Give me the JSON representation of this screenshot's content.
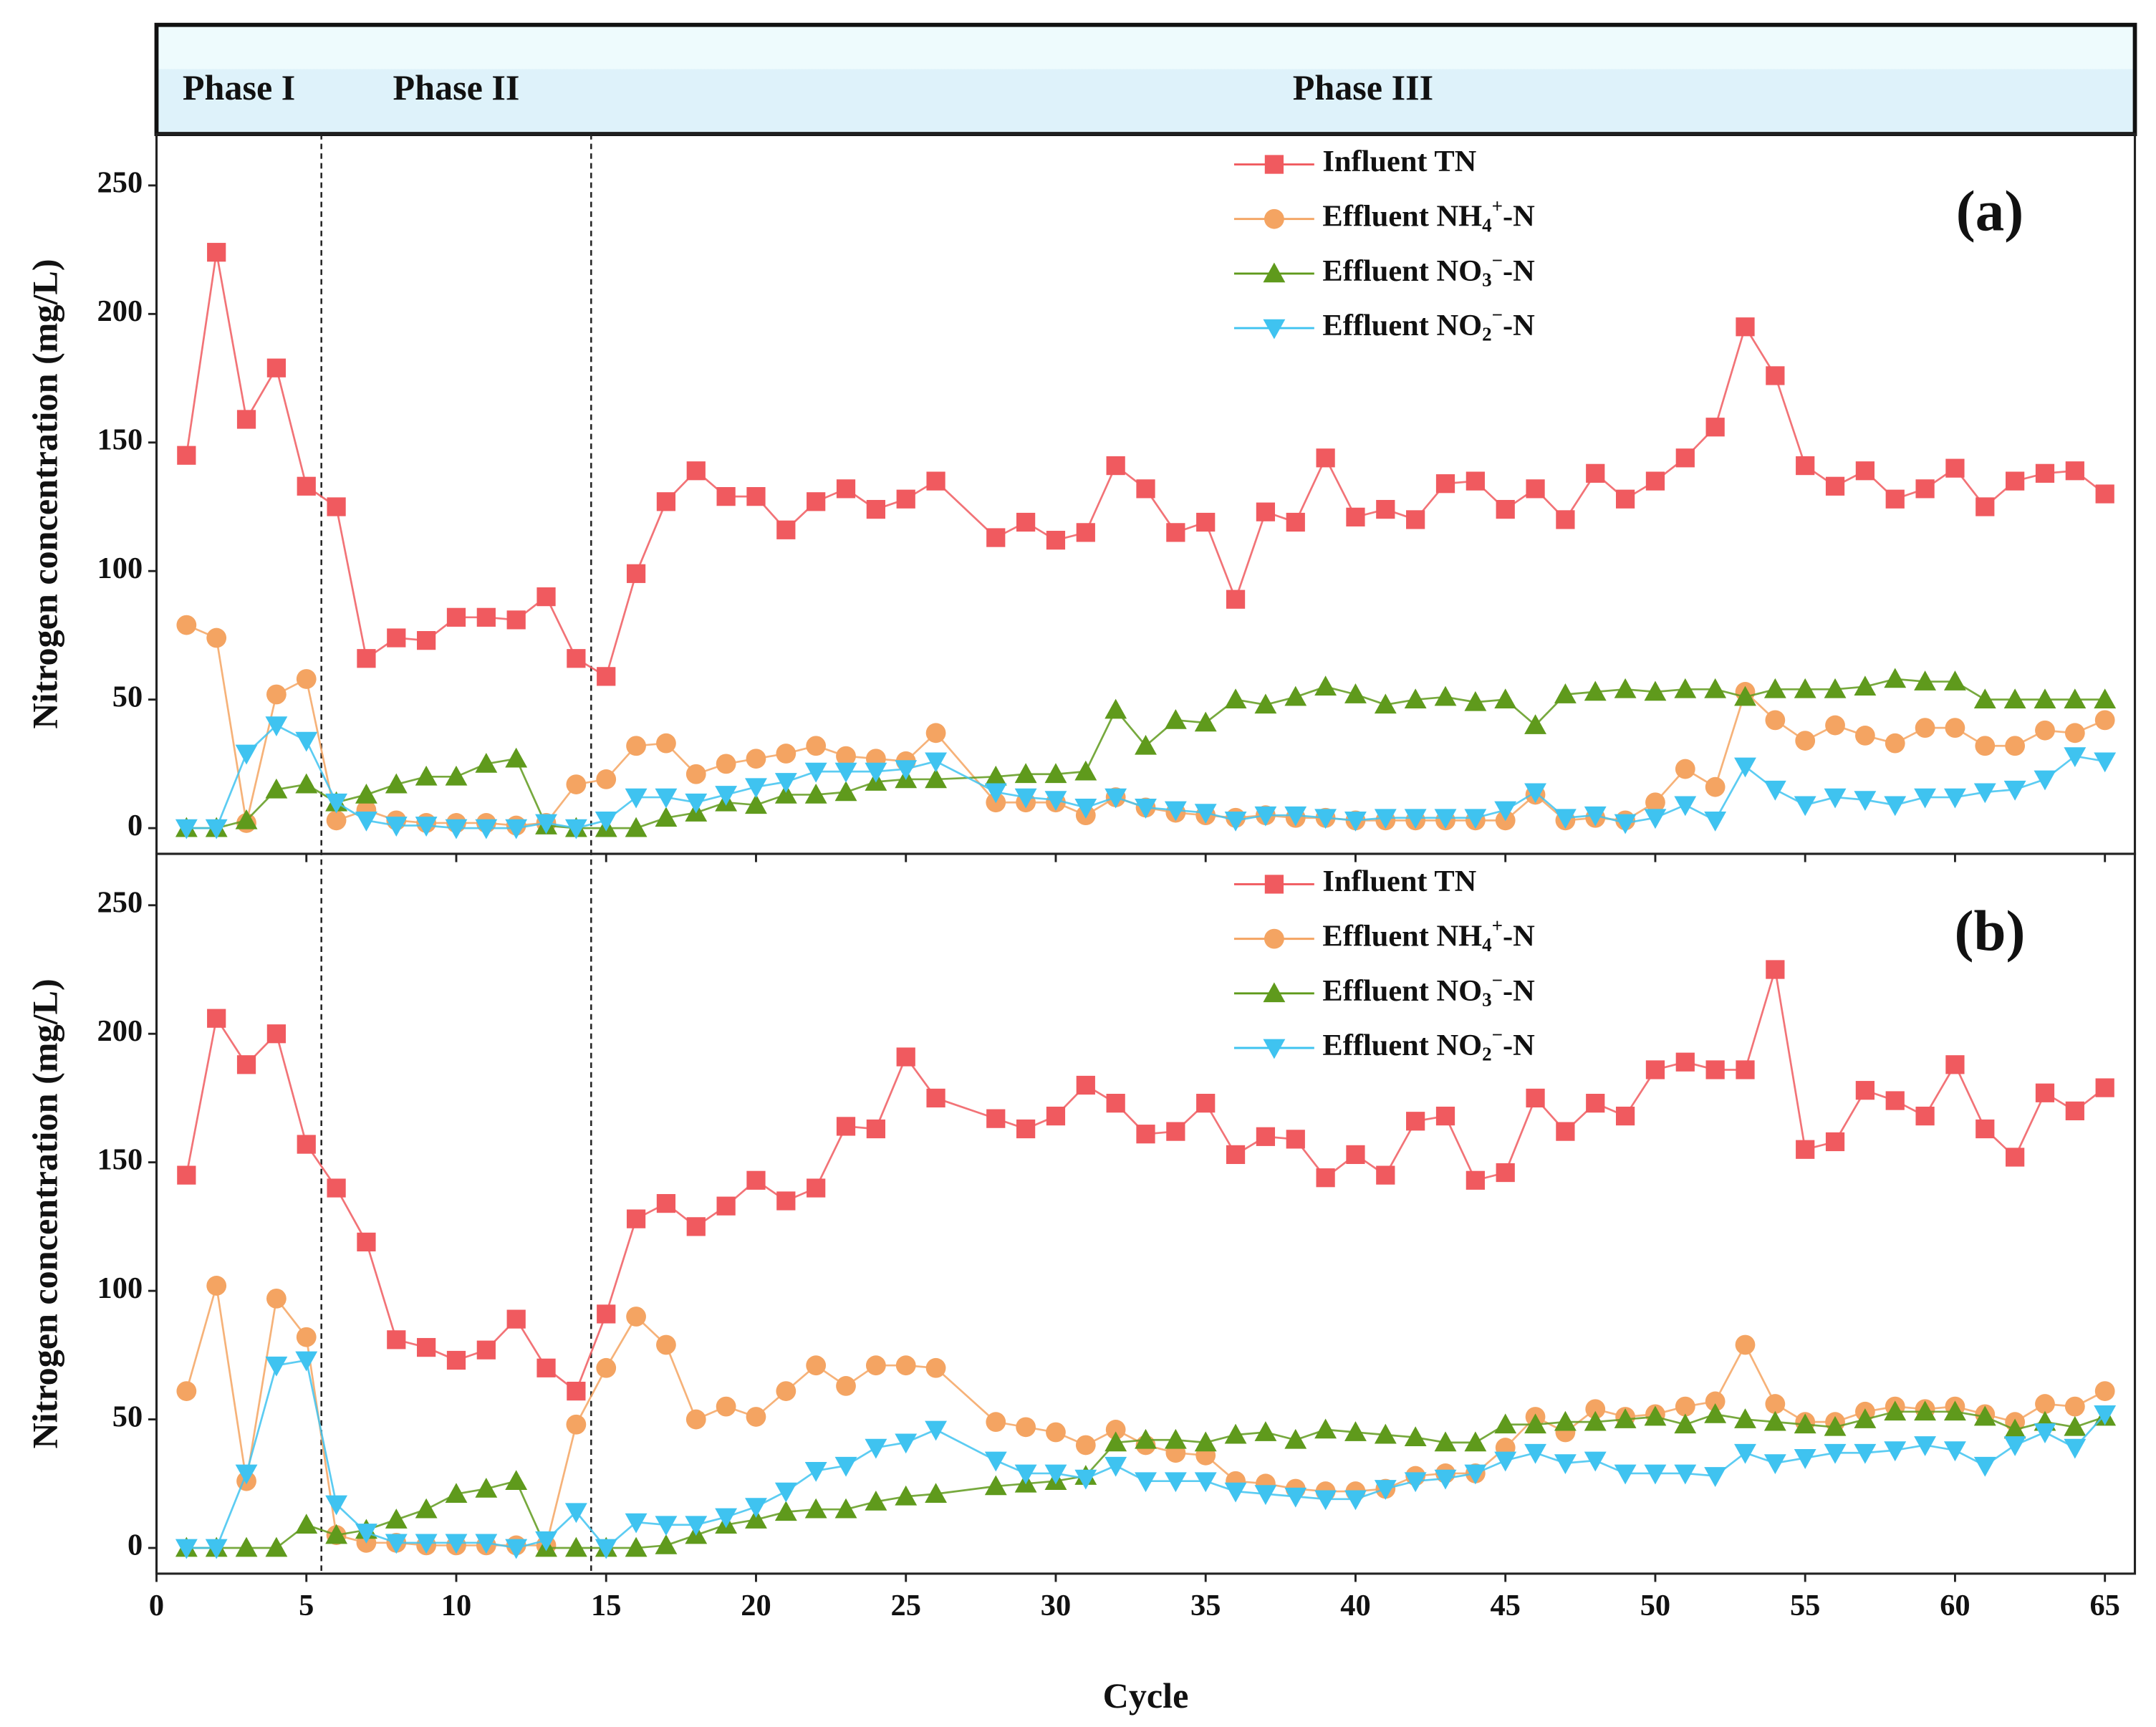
{
  "phases": {
    "labels": [
      "Phase I",
      "Phase II",
      "Phase III"
    ],
    "boundaries": [
      5.5,
      14.5
    ]
  },
  "chart_data": [
    {
      "type": "line",
      "panel_label": "(a)",
      "ylabel": "Nitrogen concentration (mg/L)",
      "xlim": [
        0,
        66
      ],
      "ylim": [
        -10,
        270
      ],
      "xticks": [
        0,
        5,
        10,
        15,
        20,
        25,
        30,
        35,
        40,
        45,
        50,
        55,
        60,
        65
      ],
      "yticks": [
        0,
        50,
        100,
        150,
        200,
        250
      ],
      "legend": "upper right",
      "x": [
        1,
        2,
        3,
        4,
        5,
        6,
        7,
        8,
        9,
        10,
        11,
        12,
        13,
        14,
        15,
        16,
        17,
        18,
        19,
        20,
        21,
        22,
        23,
        24,
        25,
        26,
        28,
        29,
        30,
        31,
        32,
        33,
        34,
        35,
        36,
        37,
        38,
        39,
        40,
        41,
        42,
        43,
        44,
        45,
        46,
        47,
        48,
        49,
        50,
        51,
        52,
        53,
        54,
        55,
        56,
        57,
        58,
        59,
        60,
        61,
        62,
        63,
        64,
        65
      ],
      "series": [
        {
          "name": "Influent TN",
          "color": "#f05a5f",
          "marker": "square",
          "values": [
            145,
            224,
            159,
            179,
            133,
            125,
            66,
            74,
            73,
            82,
            82,
            81,
            90,
            66,
            59,
            99,
            127,
            139,
            129,
            129,
            116,
            127,
            132,
            124,
            128,
            135,
            113,
            119,
            112,
            115,
            141,
            132,
            115,
            119,
            89,
            123,
            119,
            144,
            121,
            124,
            120,
            134,
            135,
            124,
            132,
            120,
            138,
            128,
            135,
            144,
            156,
            195,
            176,
            141,
            133,
            139,
            128,
            132,
            140,
            125,
            135,
            138,
            139,
            130
          ]
        },
        {
          "name": "Effluent NH4+-N",
          "color": "#f4a462",
          "marker": "circle",
          "values": [
            79,
            74,
            2,
            52,
            58,
            3,
            7,
            3,
            2,
            2,
            2,
            1,
            2,
            17,
            19,
            32,
            33,
            21,
            25,
            27,
            29,
            32,
            28,
            27,
            26,
            37,
            10,
            10,
            10,
            5,
            12,
            8,
            6,
            5,
            4,
            5,
            4,
            4,
            3,
            3,
            3,
            3,
            3,
            3,
            13,
            3,
            4,
            3,
            10,
            23,
            16,
            53,
            42,
            34,
            40,
            36,
            33,
            39,
            39,
            32,
            32,
            38,
            37,
            42
          ]
        },
        {
          "name": "Effluent NO3−-N",
          "color": "#5f9a1c",
          "marker": "triangle-up",
          "values": [
            0,
            0,
            3,
            15,
            17,
            10,
            13,
            17,
            20,
            20,
            25,
            27,
            1,
            0,
            0,
            0,
            4,
            6,
            10,
            9,
            13,
            13,
            14,
            18,
            19,
            19,
            20,
            21,
            21,
            22,
            46,
            32,
            42,
            41,
            50,
            48,
            51,
            55,
            52,
            48,
            50,
            51,
            49,
            50,
            40,
            52,
            53,
            54,
            53,
            54,
            54,
            51,
            54,
            54,
            54,
            55,
            58,
            57,
            57,
            50,
            50,
            50,
            50,
            50
          ]
        },
        {
          "name": "Effluent NO2−-N",
          "color": "#3fc3f0",
          "marker": "triangle-down",
          "values": [
            0,
            0,
            29,
            40,
            34,
            10,
            3,
            1,
            1,
            0,
            0,
            0,
            2,
            0,
            3,
            12,
            12,
            10,
            13,
            16,
            18,
            22,
            22,
            22,
            23,
            26,
            14,
            12,
            11,
            8,
            12,
            8,
            7,
            6,
            3,
            5,
            5,
            4,
            3,
            4,
            4,
            4,
            4,
            7,
            14,
            4,
            5,
            2,
            4,
            9,
            3,
            24,
            15,
            9,
            12,
            11,
            9,
            12,
            12,
            14,
            15,
            19,
            28,
            26
          ]
        }
      ]
    },
    {
      "type": "line",
      "panel_label": "(b)",
      "ylabel": "Nitrogen concentration (mg/L)",
      "xlabel": "Cycle",
      "xlim": [
        0,
        66
      ],
      "ylim": [
        -10,
        270
      ],
      "xticks": [
        0,
        5,
        10,
        15,
        20,
        25,
        30,
        35,
        40,
        45,
        50,
        55,
        60,
        65
      ],
      "yticks": [
        0,
        50,
        100,
        150,
        200,
        250
      ],
      "legend": "upper right",
      "x": [
        1,
        2,
        3,
        4,
        5,
        6,
        7,
        8,
        9,
        10,
        11,
        12,
        13,
        14,
        15,
        16,
        17,
        18,
        19,
        20,
        21,
        22,
        23,
        24,
        25,
        26,
        28,
        29,
        30,
        31,
        32,
        33,
        34,
        35,
        36,
        37,
        38,
        39,
        40,
        41,
        42,
        43,
        44,
        45,
        46,
        47,
        48,
        49,
        50,
        51,
        52,
        53,
        54,
        55,
        56,
        57,
        58,
        59,
        60,
        61,
        62,
        63,
        64,
        65
      ],
      "series": [
        {
          "name": "Influent TN",
          "color": "#f05a5f",
          "marker": "square",
          "values": [
            145,
            206,
            188,
            200,
            157,
            140,
            119,
            81,
            78,
            73,
            77,
            89,
            70,
            61,
            91,
            128,
            134,
            125,
            133,
            143,
            135,
            140,
            164,
            163,
            191,
            175,
            167,
            163,
            168,
            180,
            173,
            161,
            162,
            173,
            153,
            160,
            159,
            144,
            153,
            145,
            166,
            168,
            143,
            146,
            175,
            162,
            173,
            168,
            186,
            189,
            186,
            186,
            225,
            155,
            158,
            178,
            174,
            168,
            188,
            163,
            152,
            177,
            170,
            179
          ]
        },
        {
          "name": "Effluent NH4+-N",
          "color": "#f4a462",
          "marker": "circle",
          "values": [
            61,
            102,
            26,
            97,
            82,
            5,
            2,
            2,
            1,
            1,
            1,
            1,
            1,
            48,
            70,
            90,
            79,
            50,
            55,
            51,
            61,
            71,
            63,
            71,
            71,
            70,
            49,
            47,
            45,
            40,
            46,
            40,
            37,
            36,
            26,
            25,
            23,
            22,
            22,
            23,
            28,
            29,
            29,
            39,
            51,
            45,
            54,
            51,
            52,
            55,
            57,
            79,
            56,
            49,
            49,
            53,
            55,
            54,
            55,
            52,
            49,
            56,
            55,
            61
          ]
        },
        {
          "name": "Effluent NO3−-N",
          "color": "#5f9a1c",
          "marker": "triangle-up",
          "values": [
            0,
            0,
            0,
            0,
            9,
            5,
            7,
            11,
            15,
            21,
            23,
            26,
            0,
            0,
            0,
            0,
            1,
            5,
            9,
            11,
            14,
            15,
            15,
            18,
            20,
            21,
            24,
            25,
            26,
            28,
            41,
            42,
            42,
            41,
            44,
            45,
            42,
            46,
            45,
            44,
            43,
            41,
            41,
            48,
            48,
            49,
            49,
            50,
            51,
            48,
            52,
            50,
            49,
            48,
            47,
            50,
            53,
            53,
            53,
            51,
            46,
            49,
            47,
            51
          ]
        },
        {
          "name": "Effluent NO2−-N",
          "color": "#3fc3f0",
          "marker": "triangle-down",
          "values": [
            0,
            0,
            29,
            71,
            73,
            17,
            6,
            2,
            2,
            2,
            2,
            0,
            3,
            14,
            0,
            10,
            9,
            9,
            12,
            16,
            22,
            30,
            32,
            39,
            41,
            46,
            34,
            29,
            29,
            27,
            32,
            26,
            26,
            26,
            22,
            21,
            20,
            19,
            19,
            23,
            26,
            27,
            29,
            34,
            37,
            33,
            34,
            29,
            29,
            29,
            28,
            37,
            33,
            35,
            37,
            37,
            38,
            40,
            38,
            32,
            40,
            45,
            39,
            52
          ]
        }
      ]
    }
  ]
}
